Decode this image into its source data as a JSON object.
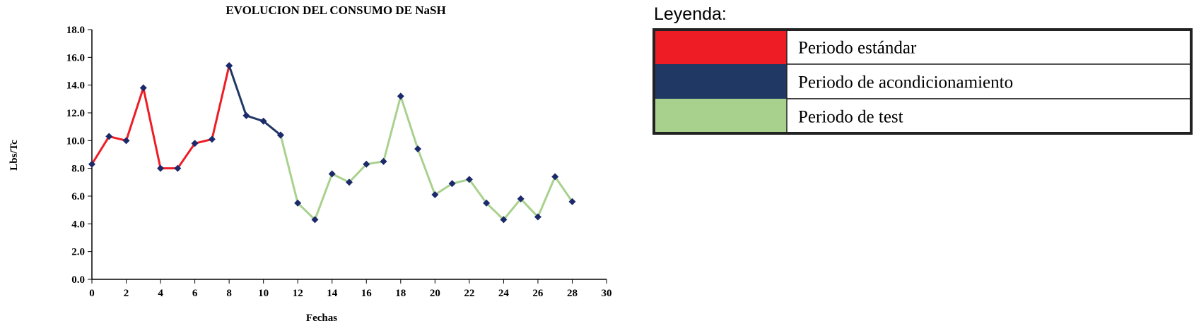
{
  "chart_data": {
    "type": "line",
    "title": "EVOLUCION DEL CONSUMO DE NaSH",
    "x_label": "Fechas",
    "y_label": "Lbs/Tc",
    "legend_title": "Leyenda:",
    "marker_color": "#1c2a6b",
    "xlim": [
      0,
      30
    ],
    "xticks": [
      0,
      2,
      4,
      6,
      8,
      10,
      12,
      14,
      16,
      18,
      20,
      22,
      24,
      26,
      28,
      30
    ],
    "ylim": [
      0,
      18
    ],
    "yticks": [
      {
        "value": 0,
        "label": "0.0"
      },
      {
        "value": 2,
        "label": "2.0"
      },
      {
        "value": 4,
        "label": "4.0"
      },
      {
        "value": 6,
        "label": "6.0"
      },
      {
        "value": 8,
        "label": "8.0"
      },
      {
        "value": 10,
        "label": "10.0"
      },
      {
        "value": 12,
        "label": "12.0"
      },
      {
        "value": 14,
        "label": "14.0"
      },
      {
        "value": 16,
        "label": "16.0"
      },
      {
        "value": 18,
        "label": "18.0"
      }
    ],
    "series": [
      {
        "name": "Periodo estándar",
        "color": "#ee1c25",
        "x": [
          0,
          1,
          2,
          3,
          4,
          5,
          6,
          7,
          8
        ],
        "values": [
          8.3,
          10.3,
          10.0,
          13.8,
          8.0,
          8.0,
          9.8,
          10.1,
          15.4
        ]
      },
      {
        "name": "Periodo de acondicionamiento",
        "color": "#1f3864",
        "x": [
          8,
          9,
          10,
          11
        ],
        "values": [
          15.4,
          11.8,
          11.4,
          10.4
        ]
      },
      {
        "name": "Periodo de test",
        "color": "#a9d18e",
        "x": [
          11,
          12,
          13,
          14,
          15,
          16,
          17,
          18,
          19,
          20,
          21,
          22,
          23,
          24,
          25,
          26,
          27,
          28
        ],
        "values": [
          10.4,
          5.5,
          4.3,
          7.6,
          7.0,
          8.3,
          8.5,
          13.2,
          9.4,
          6.1,
          6.9,
          7.2,
          5.5,
          4.3,
          5.8,
          4.5,
          7.4,
          5.6
        ]
      }
    ]
  }
}
